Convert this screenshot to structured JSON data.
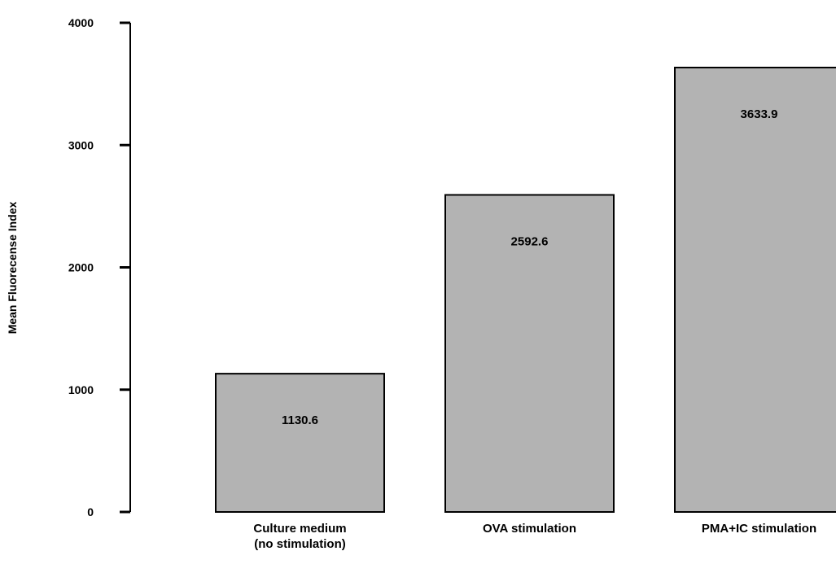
{
  "chart_data": {
    "type": "bar",
    "ylabel": "Mean Fluorecense Index",
    "xlabel": "",
    "ylim": [
      0,
      4000
    ],
    "yticks": [
      0,
      1000,
      2000,
      3000,
      4000
    ],
    "grid": false,
    "legend": "none",
    "bar_color": "#b3b3b3",
    "categories": [
      [
        "Culture medium",
        "(no stimulation)"
      ],
      [
        "OVA stimulation"
      ],
      [
        "PMA+IC stimulation"
      ]
    ],
    "values": [
      1130.6,
      2592.6,
      3633.9
    ],
    "value_labels": [
      "1130.6",
      "2592.6",
      "3633.9"
    ]
  }
}
